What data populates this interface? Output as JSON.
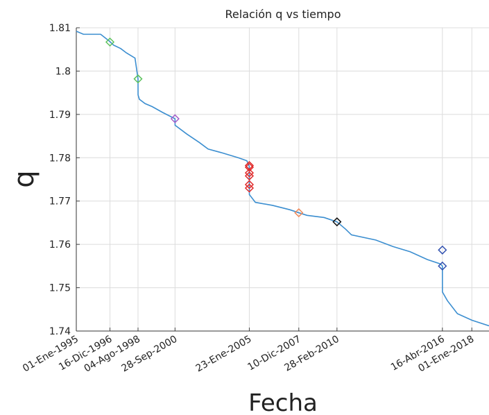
{
  "chart_data": {
    "type": "line",
    "title": "Relación q vs tiempo",
    "xlabel": "Fecha",
    "ylabel": "q",
    "grid": true,
    "xlim": [
      "1995-01-01",
      "2019-01-01"
    ],
    "ylim": [
      1.74,
      1.81
    ],
    "yticks": [
      1.74,
      1.75,
      1.76,
      1.77,
      1.78,
      1.79,
      1.8,
      1.81
    ],
    "xticks": [
      {
        "value": "1995-01-01",
        "label": "01-Ene-1995"
      },
      {
        "value": "1996-12-16",
        "label": "16-Dic-1996"
      },
      {
        "value": "1998-08-04",
        "label": "04-Ago-1998"
      },
      {
        "value": "2000-09-28",
        "label": "28-Sep-2000"
      },
      {
        "value": "2005-01-23",
        "label": "23-Ene-2005"
      },
      {
        "value": "2007-12-10",
        "label": "10-Dic-2007"
      },
      {
        "value": "2010-02-28",
        "label": "28-Feb-2010"
      },
      {
        "value": "2016-04-16",
        "label": "16-Abr-2016"
      },
      {
        "value": "2018-01-01",
        "label": "01-Ene-2018"
      }
    ],
    "series": [
      {
        "color": "#3b8ed0",
        "x": [
          "1995-01-01",
          "1995-06-01",
          "1996-06-01",
          "1996-12-16",
          "1997-03-01",
          "1997-08-01",
          "1997-12-01",
          "1998-06-01",
          "1998-08-04",
          "1998-08-05",
          "1998-09-01",
          "1999-01-01",
          "1999-06-01",
          "2000-01-01",
          "2000-09-28",
          "2000-09-29",
          "2001-06-01",
          "2002-03-01",
          "2002-09-01",
          "2003-06-01",
          "2004-06-01",
          "2004-12-01",
          "2005-01-23",
          "2005-01-24",
          "2005-06-01",
          "2006-06-01",
          "2007-06-01",
          "2007-12-10",
          "2008-06-01",
          "2009-06-01",
          "2010-02-28",
          "2010-09-01",
          "2011-01-01",
          "2012-06-01",
          "2013-06-01",
          "2014-06-01",
          "2015-06-01",
          "2016-03-01",
          "2016-04-16",
          "2016-04-17",
          "2016-08-01",
          "2017-03-01",
          "2018-01-01",
          "2019-01-01"
        ],
        "values": [
          1.8092,
          1.8085,
          1.8085,
          1.8068,
          1.806,
          1.8052,
          1.8042,
          1.803,
          1.7982,
          1.7945,
          1.7935,
          1.7925,
          1.7918,
          1.7905,
          1.789,
          1.7875,
          1.7855,
          1.7835,
          1.782,
          1.7812,
          1.78,
          1.7793,
          1.778,
          1.7715,
          1.7697,
          1.769,
          1.768,
          1.7673,
          1.7667,
          1.7662,
          1.7652,
          1.7635,
          1.7622,
          1.761,
          1.7595,
          1.7583,
          1.7565,
          1.7555,
          1.755,
          1.749,
          1.747,
          1.744,
          1.7425,
          1.7412
        ]
      }
    ],
    "markers": [
      {
        "color": "#5cc25c",
        "x": [
          "1996-12-16",
          "1998-08-04"
        ],
        "values": [
          1.8067,
          1.7982
        ]
      },
      {
        "color": "#a35bc9",
        "x": [
          "2000-09-28"
        ],
        "values": [
          1.789
        ]
      },
      {
        "color": "#e02828",
        "x": [
          "2005-01-23",
          "2005-01-23",
          "2005-01-23",
          "2005-01-23",
          "2005-01-23",
          "2005-01-23"
        ],
        "values": [
          1.7782,
          1.7778,
          1.7765,
          1.7758,
          1.7738,
          1.773
        ]
      },
      {
        "color": "#f08a5a",
        "x": [
          "2007-12-10"
        ],
        "values": [
          1.7673
        ]
      },
      {
        "color": "#111111",
        "x": [
          "2010-02-28"
        ],
        "values": [
          1.7652
        ]
      },
      {
        "color": "#3050b0",
        "x": [
          "2016-04-16",
          "2016-04-16"
        ],
        "values": [
          1.755,
          1.7587
        ]
      }
    ]
  }
}
